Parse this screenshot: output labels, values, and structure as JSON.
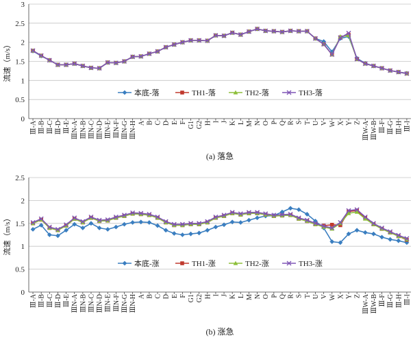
{
  "chart_data": [
    {
      "type": "line",
      "panel": "top",
      "caption": "(a) 落急",
      "ylabel": "流速（m/s）",
      "xlabel": "",
      "ylim": [
        0,
        3
      ],
      "yticks": [
        "0",
        "0.5",
        "1",
        "1.5",
        "2",
        "2.5",
        "3"
      ],
      "grid": true,
      "legend": "bottom-center",
      "categories": [
        "Ⅲ-A",
        "Ⅲ-B",
        "Ⅲ-C",
        "Ⅲ-D",
        "Ⅲ-E",
        "ⅢN-A",
        "ⅢN-B",
        "ⅢN-C",
        "ⅢN-D",
        "ⅢN-E",
        "ⅢN-F",
        "ⅢN-G",
        "ⅢN-H",
        "A",
        "B",
        "C",
        "D",
        "E",
        "F",
        "G1",
        "G2",
        "H",
        "I",
        "J",
        "K",
        "L",
        "M",
        "N",
        "O",
        "P",
        "Q",
        "R",
        "S",
        "T",
        "U",
        "V",
        "W",
        "X",
        "Y",
        "Z",
        "ⅢW-A",
        "ⅢW-B",
        "Ⅲ-F",
        "Ⅲ-G",
        "Ⅲ-H",
        "Ⅲ-I"
      ],
      "series": [
        {
          "name": "本底-落",
          "color": "#3a7ec0",
          "marker": "diamond",
          "values": [
            1.77,
            1.64,
            1.53,
            1.41,
            1.41,
            1.44,
            1.38,
            1.33,
            1.32,
            1.47,
            1.46,
            1.5,
            1.62,
            1.63,
            1.7,
            1.76,
            1.87,
            1.94,
            2.0,
            2.05,
            2.05,
            2.04,
            2.18,
            2.17,
            2.25,
            2.2,
            2.28,
            2.35,
            2.3,
            2.29,
            2.27,
            2.3,
            2.29,
            2.29,
            2.1,
            2.02,
            1.75,
            2.1,
            2.15,
            1.58,
            1.45,
            1.38,
            1.32,
            1.26,
            1.22,
            1.19
          ]
        },
        {
          "name": "TH1-落",
          "color": "#c03a2e",
          "marker": "square",
          "values": [
            1.78,
            1.65,
            1.53,
            1.41,
            1.41,
            1.44,
            1.38,
            1.33,
            1.32,
            1.47,
            1.46,
            1.5,
            1.62,
            1.63,
            1.7,
            1.76,
            1.87,
            1.94,
            2.0,
            2.05,
            2.05,
            2.04,
            2.18,
            2.17,
            2.25,
            2.2,
            2.28,
            2.35,
            2.3,
            2.29,
            2.27,
            2.3,
            2.29,
            2.29,
            2.1,
            1.95,
            1.68,
            2.13,
            2.2,
            1.56,
            1.44,
            1.38,
            1.32,
            1.26,
            1.22,
            1.18
          ]
        },
        {
          "name": "TH2-落",
          "color": "#8dbf3a",
          "marker": "triangle",
          "values": [
            1.78,
            1.65,
            1.53,
            1.41,
            1.41,
            1.44,
            1.38,
            1.33,
            1.32,
            1.47,
            1.46,
            1.5,
            1.62,
            1.63,
            1.7,
            1.76,
            1.87,
            1.94,
            2.0,
            2.05,
            2.05,
            2.04,
            2.18,
            2.17,
            2.25,
            2.2,
            2.28,
            2.35,
            2.3,
            2.29,
            2.27,
            2.3,
            2.29,
            2.29,
            2.1,
            1.95,
            1.68,
            2.15,
            2.18,
            1.56,
            1.44,
            1.38,
            1.32,
            1.26,
            1.22,
            1.18
          ]
        },
        {
          "name": "TH3-落",
          "color": "#7f55b5",
          "marker": "x",
          "values": [
            1.78,
            1.65,
            1.53,
            1.41,
            1.41,
            1.44,
            1.38,
            1.33,
            1.32,
            1.47,
            1.46,
            1.5,
            1.62,
            1.63,
            1.7,
            1.76,
            1.87,
            1.94,
            2.0,
            2.05,
            2.05,
            2.04,
            2.18,
            2.17,
            2.25,
            2.2,
            2.28,
            2.35,
            2.3,
            2.29,
            2.27,
            2.3,
            2.29,
            2.29,
            2.1,
            1.95,
            1.68,
            2.12,
            2.24,
            1.56,
            1.44,
            1.38,
            1.32,
            1.26,
            1.22,
            1.18
          ]
        }
      ]
    },
    {
      "type": "line",
      "panel": "bottom",
      "caption": "(b) 涨急",
      "ylabel": "流速（m/s）",
      "xlabel": "",
      "ylim": [
        0,
        2.5
      ],
      "yticks": [
        "0",
        "0.5",
        "1",
        "1.5",
        "2",
        "2.5"
      ],
      "grid": true,
      "legend": "bottom-center",
      "categories": [
        "Ⅲ-A",
        "Ⅲ-B",
        "Ⅲ-C",
        "Ⅲ-D",
        "Ⅲ-E",
        "ⅢN-A",
        "ⅢN-B",
        "ⅢN-C",
        "ⅢN-D",
        "ⅢN-E",
        "ⅢN-F",
        "ⅢN-G",
        "ⅢN-H",
        "A",
        "B",
        "C",
        "D",
        "E",
        "F",
        "G1",
        "G2",
        "H",
        "I",
        "J",
        "K",
        "L",
        "M",
        "N",
        "O",
        "P",
        "Q",
        "R",
        "S",
        "T",
        "U",
        "V",
        "W",
        "X",
        "Y",
        "Z",
        "ⅢW-A",
        "ⅢW-B",
        "Ⅲ-F",
        "Ⅲ-G",
        "Ⅲ-H",
        "Ⅲ-I"
      ],
      "series": [
        {
          "name": "本底-涨",
          "color": "#3a7ec0",
          "marker": "diamond",
          "values": [
            1.37,
            1.46,
            1.25,
            1.23,
            1.35,
            1.48,
            1.4,
            1.5,
            1.4,
            1.37,
            1.42,
            1.48,
            1.52,
            1.53,
            1.52,
            1.45,
            1.35,
            1.28,
            1.25,
            1.27,
            1.29,
            1.35,
            1.42,
            1.47,
            1.53,
            1.52,
            1.57,
            1.62,
            1.66,
            1.67,
            1.75,
            1.83,
            1.8,
            1.7,
            1.55,
            1.4,
            1.1,
            1.08,
            1.27,
            1.35,
            1.3,
            1.27,
            1.2,
            1.15,
            1.12,
            1.08
          ]
        },
        {
          "name": "TH1-涨",
          "color": "#c03a2e",
          "marker": "square",
          "values": [
            1.5,
            1.58,
            1.4,
            1.35,
            1.45,
            1.6,
            1.52,
            1.62,
            1.55,
            1.56,
            1.62,
            1.66,
            1.71,
            1.7,
            1.68,
            1.62,
            1.52,
            1.46,
            1.46,
            1.48,
            1.48,
            1.52,
            1.62,
            1.66,
            1.72,
            1.69,
            1.72,
            1.72,
            1.69,
            1.66,
            1.67,
            1.68,
            1.6,
            1.55,
            1.48,
            1.45,
            1.47,
            1.46,
            1.76,
            1.78,
            1.62,
            1.48,
            1.38,
            1.3,
            1.22,
            1.14
          ]
        },
        {
          "name": "TH2-涨",
          "color": "#8dbf3a",
          "marker": "triangle",
          "values": [
            1.5,
            1.58,
            1.4,
            1.35,
            1.45,
            1.6,
            1.52,
            1.62,
            1.55,
            1.56,
            1.62,
            1.66,
            1.71,
            1.7,
            1.68,
            1.62,
            1.52,
            1.46,
            1.46,
            1.48,
            1.48,
            1.52,
            1.62,
            1.66,
            1.72,
            1.69,
            1.72,
            1.72,
            1.69,
            1.66,
            1.67,
            1.68,
            1.6,
            1.55,
            1.48,
            1.42,
            1.38,
            1.5,
            1.72,
            1.75,
            1.6,
            1.48,
            1.38,
            1.3,
            1.22,
            1.15
          ]
        },
        {
          "name": "TH3-涨",
          "color": "#7f55b5",
          "marker": "x",
          "values": [
            1.52,
            1.6,
            1.42,
            1.37,
            1.47,
            1.62,
            1.54,
            1.64,
            1.57,
            1.58,
            1.64,
            1.68,
            1.73,
            1.72,
            1.7,
            1.64,
            1.54,
            1.48,
            1.48,
            1.5,
            1.5,
            1.54,
            1.64,
            1.68,
            1.74,
            1.71,
            1.74,
            1.74,
            1.71,
            1.68,
            1.69,
            1.7,
            1.62,
            1.57,
            1.5,
            1.44,
            1.4,
            1.52,
            1.78,
            1.8,
            1.64,
            1.5,
            1.4,
            1.32,
            1.24,
            1.17
          ]
        }
      ]
    }
  ]
}
